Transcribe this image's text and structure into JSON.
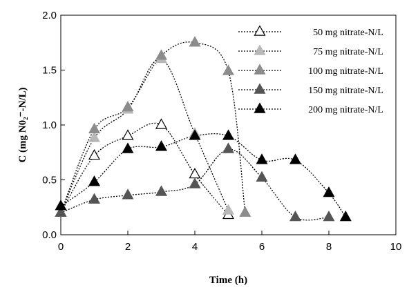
{
  "chart_data": {
    "type": "line",
    "xlabel": "Time (h)",
    "ylabel": "C (mg N0₂⁻-N/L)",
    "xlim": [
      0,
      10
    ],
    "ylim": [
      0,
      2.0
    ],
    "xticks": [
      "0",
      "2",
      "4",
      "6",
      "8",
      "10"
    ],
    "yticks": [
      "0.0",
      "0.5",
      "1.0",
      "1.5",
      "2.0"
    ],
    "grid": false,
    "legend_position": "top-right",
    "series": [
      {
        "name": "50 mg nitrate-N/L",
        "marker": "triangle-open",
        "color": "#000000",
        "x": [
          0,
          1,
          2,
          3,
          4,
          5
        ],
        "y": [
          0.2,
          0.72,
          0.9,
          1.0,
          0.55,
          0.18
        ]
      },
      {
        "name": "75 mg nitrate-N/L",
        "marker": "triangle-filled",
        "color": "#b8b8b8",
        "x": [
          0,
          1,
          2,
          3,
          4,
          5
        ],
        "y": [
          0.2,
          0.88,
          1.14,
          1.6,
          0.92,
          0.22
        ]
      },
      {
        "name": "100 mg nitrate-N/L",
        "marker": "triangle-filled",
        "color": "#8c8c8c",
        "x": [
          0,
          1,
          2,
          3,
          4,
          5,
          5.5
        ],
        "y": [
          0.2,
          0.96,
          1.16,
          1.63,
          1.75,
          1.49,
          0.2
        ]
      },
      {
        "name": "150 mg nitrate-N/L",
        "marker": "triangle-filled",
        "color": "#555555",
        "x": [
          0,
          1,
          2,
          3,
          4,
          5,
          6,
          7,
          8
        ],
        "y": [
          0.2,
          0.32,
          0.36,
          0.39,
          0.46,
          0.78,
          0.52,
          0.16,
          0.16
        ]
      },
      {
        "name": "200 mg nitrate-N/L",
        "marker": "triangle-filled",
        "color": "#000000",
        "x": [
          0,
          1,
          2,
          3,
          4,
          5,
          6,
          7,
          8,
          8.5
        ],
        "y": [
          0.26,
          0.48,
          0.78,
          0.8,
          0.9,
          0.9,
          0.68,
          0.68,
          0.38,
          0.16
        ]
      }
    ]
  }
}
